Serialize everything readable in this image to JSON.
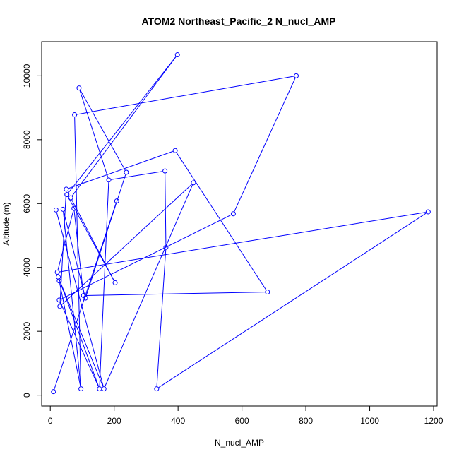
{
  "chart_data": {
    "type": "line",
    "title": "ATOM2 Northeast_Pacific_2 N_nucl_AMP",
    "xlabel": "N_nucl_AMP",
    "ylabel": "Altitude (m)",
    "xlim": [
      -27,
      1211
    ],
    "ylim": [
      -340,
      11070
    ],
    "x_ticks": [
      0,
      200,
      400,
      600,
      800,
      1000,
      1200
    ],
    "y_ticks": [
      0,
      2000,
      4000,
      6000,
      8000,
      10000
    ],
    "grid": false,
    "series_color": "#0000ff",
    "points": [
      {
        "x": 10,
        "y": 110
      },
      {
        "x": 18,
        "y": 5800
      },
      {
        "x": 22,
        "y": 3850
      },
      {
        "x": 25,
        "y": 3700
      },
      {
        "x": 28,
        "y": 3580
      },
      {
        "x": 28,
        "y": 2980
      },
      {
        "x": 30,
        "y": 2780
      },
      {
        "x": 40,
        "y": 5820
      },
      {
        "x": 50,
        "y": 6450
      },
      {
        "x": 52,
        "y": 6280
      },
      {
        "x": 64,
        "y": 6180
      },
      {
        "x": 74,
        "y": 5850
      },
      {
        "x": 76,
        "y": 8780
      },
      {
        "x": 90,
        "y": 9620
      },
      {
        "x": 96,
        "y": 200
      },
      {
        "x": 104,
        "y": 3120
      },
      {
        "x": 110,
        "y": 3040
      },
      {
        "x": 154,
        "y": 200
      },
      {
        "x": 168,
        "y": 200
      },
      {
        "x": 183,
        "y": 6740
      },
      {
        "x": 203,
        "y": 3520
      },
      {
        "x": 208,
        "y": 6080
      },
      {
        "x": 238,
        "y": 6980
      },
      {
        "x": 333,
        "y": 200
      },
      {
        "x": 359,
        "y": 7020
      },
      {
        "x": 362,
        "y": 4630
      },
      {
        "x": 391,
        "y": 7660
      },
      {
        "x": 398,
        "y": 10660
      },
      {
        "x": 448,
        "y": 6650
      },
      {
        "x": 573,
        "y": 5680
      },
      {
        "x": 680,
        "y": 3230
      },
      {
        "x": 770,
        "y": 10000
      },
      {
        "x": 1183,
        "y": 5740
      }
    ],
    "segments": [
      [
        [
          168,
          200
        ],
        [
          18,
          5800
        ]
      ],
      [
        [
          96,
          200
        ],
        [
          28,
          3580
        ]
      ],
      [
        [
          10,
          110
        ],
        [
          208,
          6080
        ]
      ],
      [
        [
          154,
          200
        ],
        [
          28,
          2980
        ]
      ],
      [
        [
          22,
          3850
        ],
        [
          1183,
          5740
        ]
      ],
      [
        [
          1183,
          5740
        ],
        [
          333,
          200
        ]
      ],
      [
        [
          333,
          200
        ],
        [
          362,
          4630
        ]
      ],
      [
        [
          362,
          4630
        ],
        [
          359,
          7020
        ]
      ],
      [
        [
          359,
          7020
        ],
        [
          183,
          6740
        ]
      ],
      [
        [
          183,
          6740
        ],
        [
          154,
          200
        ]
      ],
      [
        [
          104,
          3120
        ],
        [
          680,
          3230
        ]
      ],
      [
        [
          680,
          3230
        ],
        [
          391,
          7660
        ]
      ],
      [
        [
          391,
          7660
        ],
        [
          50,
          6450
        ]
      ],
      [
        [
          50,
          6450
        ],
        [
          30,
          2780
        ]
      ],
      [
        [
          30,
          2780
        ],
        [
          448,
          6650
        ]
      ],
      [
        [
          448,
          6650
        ],
        [
          168,
          200
        ]
      ],
      [
        [
          28,
          2980
        ],
        [
          573,
          5680
        ]
      ],
      [
        [
          573,
          5680
        ],
        [
          770,
          10000
        ]
      ],
      [
        [
          770,
          10000
        ],
        [
          76,
          8780
        ]
      ],
      [
        [
          76,
          8780
        ],
        [
          96,
          200
        ]
      ],
      [
        [
          64,
          6180
        ],
        [
          203,
          3520
        ]
      ],
      [
        [
          203,
          3520
        ],
        [
          52,
          6280
        ]
      ],
      [
        [
          52,
          6280
        ],
        [
          398,
          10660
        ]
      ],
      [
        [
          398,
          10660
        ],
        [
          64,
          6180
        ]
      ],
      [
        [
          40,
          5820
        ],
        [
          110,
          3040
        ]
      ],
      [
        [
          110,
          3040
        ],
        [
          238,
          6980
        ]
      ],
      [
        [
          238,
          6980
        ],
        [
          90,
          9620
        ]
      ],
      [
        [
          90,
          9620
        ],
        [
          183,
          6740
        ]
      ],
      [
        [
          74,
          5850
        ],
        [
          104,
          3120
        ]
      ],
      [
        [
          22,
          3850
        ],
        [
          74,
          5850
        ]
      ],
      [
        [
          25,
          3700
        ],
        [
          168,
          200
        ]
      ],
      [
        [
          96,
          200
        ],
        [
          40,
          5820
        ]
      ],
      [
        [
          154,
          200
        ],
        [
          25,
          3700
        ]
      ]
    ]
  }
}
